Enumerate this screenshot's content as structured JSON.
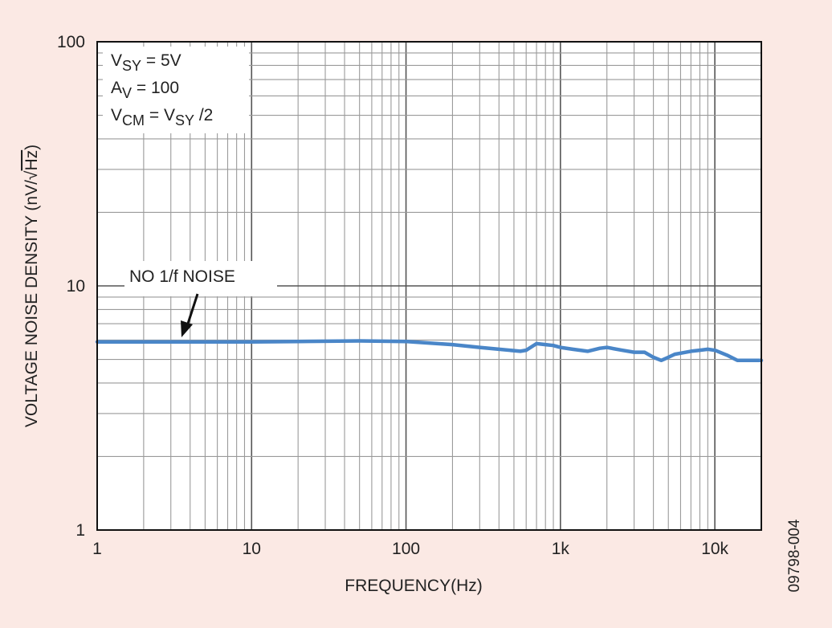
{
  "chart_data": {
    "type": "line",
    "x_scale": "log",
    "y_scale": "log",
    "xlim": [
      1,
      20000
    ],
    "ylim": [
      1,
      100
    ],
    "xlabel": "FREQUENCY(Hz)",
    "ylabel_main": "VOLTAGE NOISE DENSITY (nV/",
    "ylabel_radicand": "Hz",
    "ylabel_close": ")",
    "x_ticks": [
      {
        "value": 1,
        "label": "1"
      },
      {
        "value": 10,
        "label": "10"
      },
      {
        "value": 100,
        "label": "100"
      },
      {
        "value": 1000,
        "label": "1k"
      },
      {
        "value": 10000,
        "label": "10k"
      }
    ],
    "y_ticks": [
      {
        "value": 1,
        "label": "1"
      },
      {
        "value": 10,
        "label": "10"
      },
      {
        "value": 100,
        "label": "100"
      }
    ],
    "grid": true,
    "conditions": [
      {
        "base": "V",
        "sub": "SY",
        "rest": " = 5V"
      },
      {
        "base": "A",
        "sub": "V",
        "rest": " = 100"
      },
      {
        "base": "V",
        "sub": "CM",
        "rest": " = V",
        "sub2": "SY",
        "rest2": " /2"
      }
    ],
    "annotation": {
      "text": "NO 1/f NOISE",
      "x": 3.5,
      "y": 5.95
    },
    "figure_id": "09798-004",
    "series": [
      {
        "color": "#4a86c8",
        "x": [
          1,
          2,
          5,
          10,
          20,
          50,
          100,
          200,
          300,
          400,
          550,
          600,
          700,
          800,
          900,
          1000,
          1200,
          1500,
          1800,
          2000,
          2500,
          3000,
          3500,
          4000,
          4500,
          5000,
          5500,
          6000,
          7000,
          8000,
          9000,
          10000,
          12000,
          14000,
          16000,
          20000
        ],
        "y": [
          5.9,
          5.9,
          5.9,
          5.9,
          5.92,
          5.95,
          5.92,
          5.75,
          5.6,
          5.5,
          5.4,
          5.45,
          5.8,
          5.75,
          5.7,
          5.6,
          5.5,
          5.4,
          5.55,
          5.6,
          5.45,
          5.35,
          5.35,
          5.1,
          4.95,
          5.1,
          5.25,
          5.3,
          5.4,
          5.45,
          5.5,
          5.45,
          5.2,
          4.95,
          4.95,
          4.95
        ]
      }
    ]
  }
}
